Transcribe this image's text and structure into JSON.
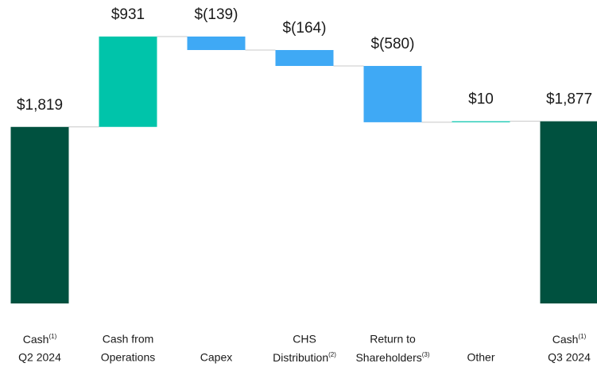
{
  "chart_data": {
    "type": "waterfall",
    "categories": [
      [
        {
          "text": "Cash",
          "note": "(1)"
        },
        "Q2 2024"
      ],
      [
        "Cash from",
        "Operations"
      ],
      [
        "Capex"
      ],
      [
        "CHS",
        {
          "text": "Distribution",
          "note": "(2)"
        }
      ],
      [
        "Return to",
        {
          "text": "Shareholders",
          "note": "(3)"
        }
      ],
      [
        "Other"
      ],
      [
        {
          "text": "Cash",
          "note": "(1)"
        },
        "Q3 2024"
      ]
    ],
    "measures": [
      "total",
      "relative",
      "relative",
      "relative",
      "relative",
      "relative",
      "total"
    ],
    "values": [
      1819,
      931,
      -139,
      -164,
      -580,
      10,
      1877
    ],
    "value_labels": [
      "$1,819",
      "$931",
      "$(139)",
      "$(164)",
      "$(580)",
      "$10",
      "$1,877"
    ],
    "colors": {
      "total": "#00513f",
      "increase": "#00c4aa",
      "decrease": "#3fa9f5"
    },
    "ylim": [
      0,
      2750
    ]
  }
}
